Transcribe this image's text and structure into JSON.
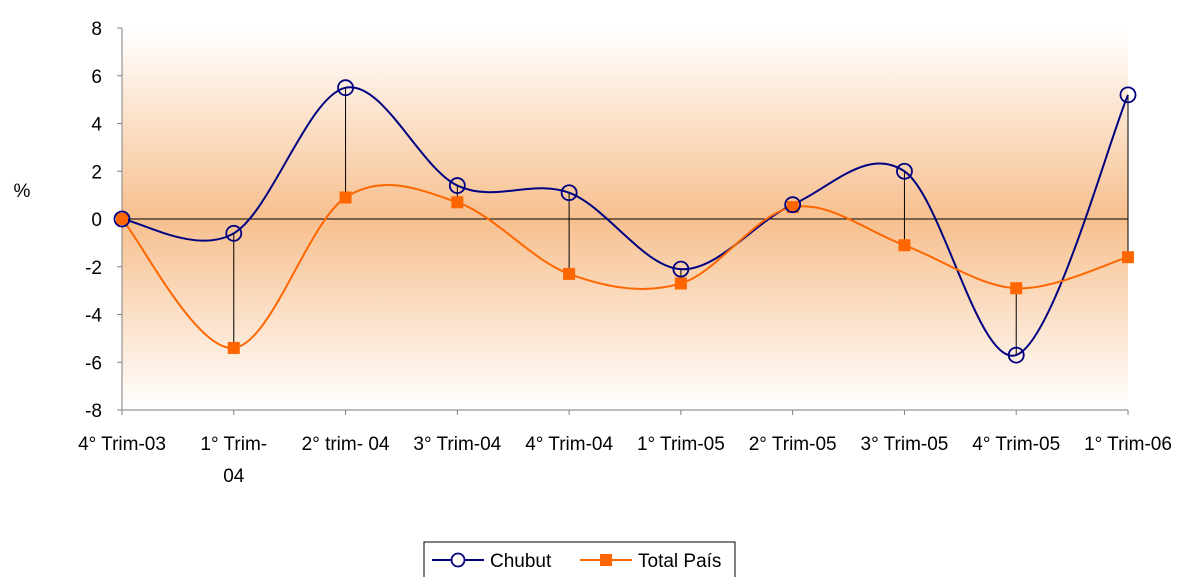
{
  "chart_data": {
    "type": "line",
    "title": "",
    "xlabel": "",
    "ylabel": "%",
    "ylim": [
      -8,
      8
    ],
    "yticks": [
      8,
      6,
      4,
      2,
      0,
      -2,
      -4,
      -6,
      -8
    ],
    "categories": [
      [
        "4° Trim-03"
      ],
      [
        "1° Trim-",
        "04"
      ],
      [
        "2° trim- 04"
      ],
      [
        "3° Trim-04"
      ],
      [
        "4° Trim-04"
      ],
      [
        "1° Trim-05"
      ],
      [
        "2° Trim-05"
      ],
      [
        "3° Trim-05"
      ],
      [
        "4° Trim-05"
      ],
      [
        "1° Trim-06"
      ]
    ],
    "series": [
      {
        "name": "Chubut",
        "color": "#000080",
        "marker": "circle",
        "values": [
          0.0,
          -0.6,
          5.5,
          1.4,
          1.1,
          -2.1,
          0.6,
          2.0,
          -5.7,
          5.2
        ]
      },
      {
        "name": "Total País",
        "color": "#FF6600",
        "marker": "square",
        "values": [
          0.0,
          -5.4,
          0.9,
          0.7,
          -2.3,
          -2.7,
          0.5,
          -1.1,
          -2.9,
          -1.6
        ]
      }
    ],
    "drop_lines": true,
    "grid": false,
    "legend_position": "bottom-center"
  }
}
